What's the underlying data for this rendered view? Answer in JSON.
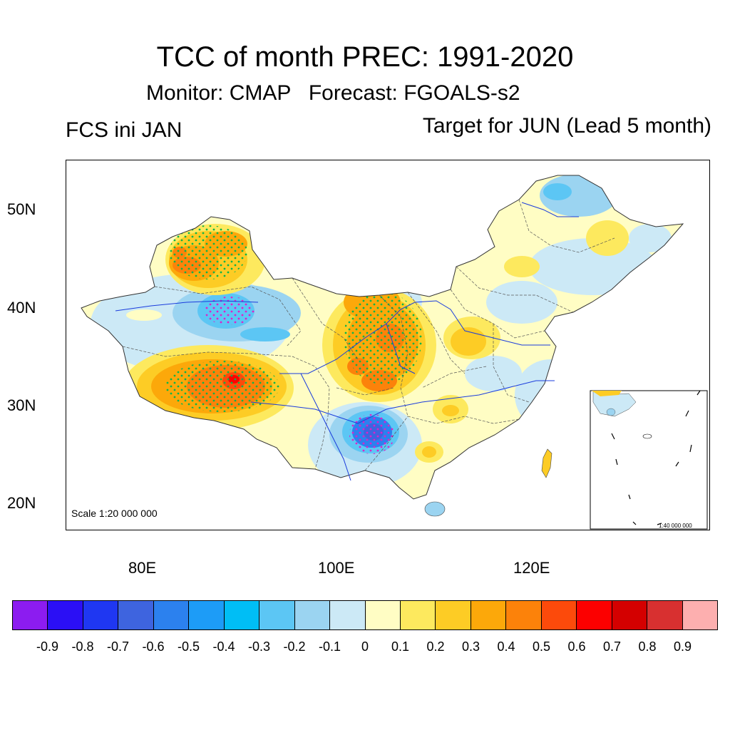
{
  "title": "TCC of month PREC: 1991-2020",
  "subtitle": "Monitor: CMAP   Forecast: FGOALS-s2",
  "left_label": "FCS ini JAN",
  "right_label": "Target for JUN (Lead 5 month)",
  "map": {
    "lat_labels": [
      "50N",
      "40N",
      "30N",
      "20N"
    ],
    "lon_labels": [
      "80E",
      "100E",
      "120E"
    ],
    "scale_label": "Scale 1:20 000 000",
    "inset_scale_label": "1:40 000 000"
  },
  "colorbar": {
    "colors": [
      "#8c1cf0",
      "#2b0ff5",
      "#1f37f2",
      "#3e64df",
      "#2c81ee",
      "#1d9cf7",
      "#00bef5",
      "#5cc6f4",
      "#9bd4f1",
      "#cce9f6",
      "#fffdc4",
      "#fde95e",
      "#fdcc25",
      "#fca80a",
      "#fc820a",
      "#fc4a0b",
      "#fc0000",
      "#d40000",
      "#d83030",
      "#fdafaf"
    ],
    "labels": [
      "-0.9",
      "-0.8",
      "-0.7",
      "-0.6",
      "-0.5",
      "-0.4",
      "-0.3",
      "-0.2",
      "-0.1",
      "0",
      "0.1",
      "0.2",
      "0.3",
      "0.4",
      "0.5",
      "0.6",
      "0.7",
      "0.8",
      "0.9"
    ]
  }
}
